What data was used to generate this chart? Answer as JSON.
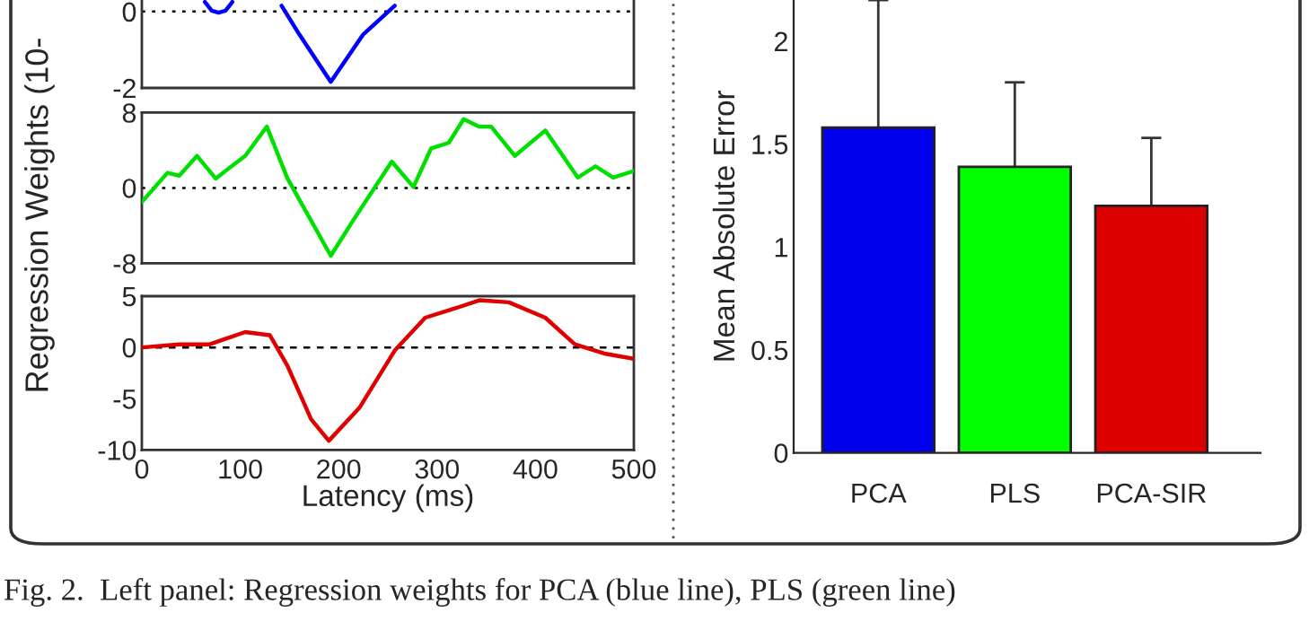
{
  "chart_data": [
    {
      "type": "line",
      "x": [
        64,
        71,
        78,
        85,
        92,
        100,
        142,
        160,
        192,
        225,
        257
      ],
      "xlim": [
        0,
        500
      ],
      "ylim": [
        -2,
        0.3
      ],
      "yticks": [
        -2,
        0
      ],
      "tick_labels": "y",
      "ylabel": "Regression Weights (10-",
      "series": [
        {
          "color": "#0000ff",
          "values": [
            0.25,
            0.02,
            -0.03,
            0.02,
            0.25,
            null,
            0.15,
            -0.6,
            -1.84,
            -0.6,
            0.15
          ]
        }
      ],
      "ref_lines": [
        {
          "axis": "y",
          "value": 0,
          "color": "#000000",
          "line_style": "dotted"
        }
      ]
    },
    {
      "type": "line",
      "x": [
        0,
        26,
        38,
        56,
        75,
        105,
        127,
        148,
        192,
        215,
        254,
        276,
        294,
        312,
        327,
        343,
        355,
        379,
        410,
        443,
        461,
        479,
        500
      ],
      "xlim": [
        0,
        500
      ],
      "ylim": [
        -8,
        8
      ],
      "yticks": [
        -8,
        0,
        8
      ],
      "tick_labels": "y",
      "series": [
        {
          "color": "#00e000",
          "values": [
            -1.5,
            1.6,
            1.3,
            3.4,
            1.0,
            3.4,
            6.5,
            1.0,
            -7.2,
            -3.4,
            2.8,
            0.1,
            4.2,
            4.8,
            7.3,
            6.5,
            6.5,
            3.4,
            6.1,
            1.1,
            2.3,
            1.1,
            1.8
          ]
        }
      ],
      "ref_lines": [
        {
          "axis": "y",
          "value": 0,
          "color": "#000000",
          "line_style": "dotted"
        }
      ]
    },
    {
      "type": "line",
      "x": [
        0,
        38,
        69,
        105,
        130,
        148,
        172,
        190,
        221,
        257,
        288,
        318,
        343,
        373,
        410,
        440,
        470,
        500
      ],
      "xlim": [
        0,
        500
      ],
      "xticks": [
        0,
        100,
        200,
        300,
        400,
        500
      ],
      "ylim": [
        -10,
        5
      ],
      "yticks": [
        -10,
        -5,
        0,
        5
      ],
      "xlabel": "Latency (ms)",
      "series": [
        {
          "color": "#e00000",
          "values": [
            0,
            0.3,
            0.3,
            1.5,
            1.2,
            -1.8,
            -7,
            -9.1,
            -5.9,
            -0.3,
            2.9,
            3.8,
            4.6,
            4.4,
            2.9,
            0.3,
            -0.6,
            -1.1
          ]
        }
      ],
      "ref_lines": [
        {
          "axis": "y",
          "value": 0,
          "color": "#000000",
          "line_style": "dashed"
        }
      ]
    },
    {
      "type": "bar",
      "categories": [
        "PCA",
        "PLS",
        "PCA-SIR"
      ],
      "values": [
        1.58,
        1.39,
        1.2
      ],
      "colors": [
        "#0000ee",
        "#00ff00",
        "#dd0000"
      ],
      "errors": [
        0.62,
        0.41,
        0.33
      ],
      "ylim": [
        0,
        2.2
      ],
      "yticks": [
        0,
        0.5,
        1,
        1.5,
        2
      ],
      "ylabel": "Mean Absolute Error",
      "annotations": [
        "Fig. 2.  Left panel: Regression weights for PCA (blue line), PLS (green line)"
      ]
    }
  ]
}
